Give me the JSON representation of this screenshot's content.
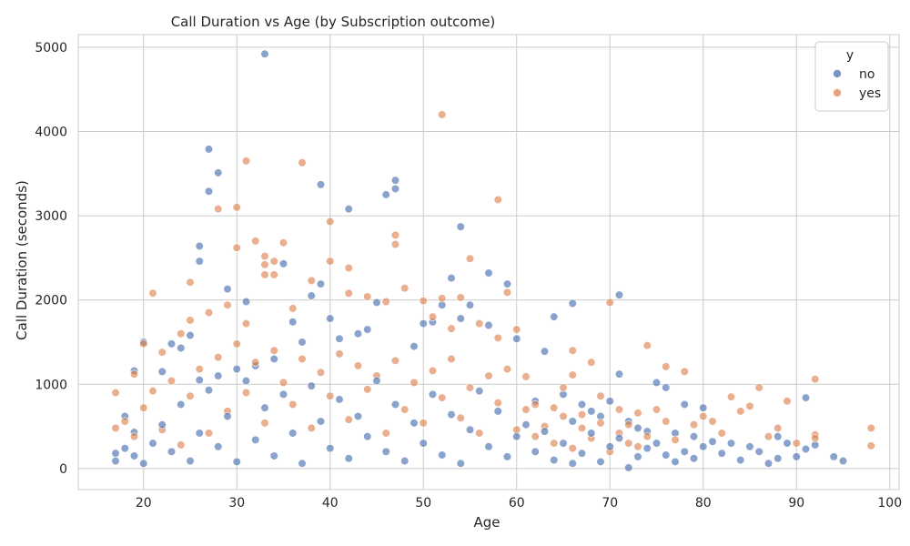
{
  "chart_data": {
    "type": "scatter",
    "title": "Call Duration vs Age (by Subscription outcome)",
    "xlabel": "Age",
    "ylabel": "Call Duration (seconds)",
    "xlim": [
      13,
      101
    ],
    "ylim": [
      -250,
      5150
    ],
    "xticks": [
      20,
      30,
      40,
      50,
      60,
      70,
      80,
      90,
      100
    ],
    "yticks": [
      0,
      1000,
      2000,
      3000,
      4000,
      5000
    ],
    "grid": true,
    "legend": {
      "title": "y",
      "placement": "top-right"
    },
    "series": [
      {
        "name": "no",
        "color": "#4c72b0",
        "points": [
          [
            33,
            4920
          ],
          [
            27,
            3790
          ],
          [
            28,
            3510
          ],
          [
            27,
            3290
          ],
          [
            39,
            3370
          ],
          [
            42,
            3080
          ],
          [
            47,
            3420
          ],
          [
            47,
            3320
          ],
          [
            46,
            3250
          ],
          [
            54,
            2870
          ],
          [
            26,
            2640
          ],
          [
            26,
            2460
          ],
          [
            35,
            2430
          ],
          [
            57,
            2320
          ],
          [
            53,
            2260
          ],
          [
            59,
            2190
          ],
          [
            39,
            2190
          ],
          [
            71,
            2060
          ],
          [
            29,
            2130
          ],
          [
            38,
            2050
          ],
          [
            31,
            1980
          ],
          [
            40,
            1780
          ],
          [
            36,
            1740
          ],
          [
            45,
            1970
          ],
          [
            52,
            1940
          ],
          [
            55,
            1940
          ],
          [
            66,
            1960
          ],
          [
            64,
            1800
          ],
          [
            63,
            1390
          ],
          [
            71,
            1120
          ],
          [
            75,
            1020
          ],
          [
            76,
            960
          ],
          [
            78,
            760
          ],
          [
            80,
            720
          ],
          [
            91,
            840
          ],
          [
            92,
            280
          ],
          [
            94,
            140
          ],
          [
            95,
            90
          ],
          [
            91,
            230
          ],
          [
            20,
            1500
          ],
          [
            19,
            1160
          ],
          [
            22,
            1150
          ],
          [
            23,
            1480
          ],
          [
            24,
            1430
          ],
          [
            25,
            1580
          ],
          [
            50,
            1720
          ],
          [
            51,
            1740
          ],
          [
            54,
            1780
          ],
          [
            57,
            1700
          ],
          [
            60,
            1540
          ],
          [
            49,
            1450
          ],
          [
            44,
            1650
          ],
          [
            43,
            1600
          ],
          [
            41,
            1540
          ],
          [
            37,
            1500
          ],
          [
            34,
            1300
          ],
          [
            32,
            1220
          ],
          [
            30,
            1180
          ],
          [
            28,
            1100
          ],
          [
            26,
            1050
          ],
          [
            62,
            800
          ],
          [
            65,
            880
          ],
          [
            67,
            760
          ],
          [
            68,
            680
          ],
          [
            69,
            620
          ],
          [
            70,
            800
          ],
          [
            72,
            560
          ],
          [
            73,
            480
          ],
          [
            74,
            440
          ],
          [
            77,
            420
          ],
          [
            79,
            380
          ],
          [
            81,
            320
          ],
          [
            83,
            300
          ],
          [
            85,
            260
          ],
          [
            86,
            200
          ],
          [
            88,
            380
          ],
          [
            88,
            120
          ],
          [
            89,
            300
          ],
          [
            72,
            10
          ],
          [
            66,
            60
          ],
          [
            17,
            180
          ],
          [
            17,
            90
          ],
          [
            18,
            620
          ],
          [
            18,
            240
          ],
          [
            19,
            430
          ],
          [
            19,
            150
          ],
          [
            20,
            60
          ],
          [
            21,
            300
          ],
          [
            22,
            520
          ],
          [
            23,
            200
          ],
          [
            24,
            760
          ],
          [
            25,
            90
          ],
          [
            26,
            420
          ],
          [
            27,
            930
          ],
          [
            28,
            260
          ],
          [
            29,
            620
          ],
          [
            30,
            80
          ],
          [
            31,
            1040
          ],
          [
            32,
            340
          ],
          [
            33,
            720
          ],
          [
            34,
            150
          ],
          [
            35,
            880
          ],
          [
            36,
            420
          ],
          [
            37,
            60
          ],
          [
            38,
            980
          ],
          [
            39,
            560
          ],
          [
            40,
            240
          ],
          [
            41,
            820
          ],
          [
            42,
            120
          ],
          [
            43,
            620
          ],
          [
            44,
            380
          ],
          [
            45,
            1040
          ],
          [
            46,
            200
          ],
          [
            47,
            760
          ],
          [
            48,
            90
          ],
          [
            49,
            540
          ],
          [
            50,
            300
          ],
          [
            51,
            880
          ],
          [
            52,
            160
          ],
          [
            53,
            640
          ],
          [
            54,
            60
          ],
          [
            55,
            460
          ],
          [
            56,
            920
          ],
          [
            57,
            260
          ],
          [
            58,
            680
          ],
          [
            59,
            140
          ],
          [
            60,
            380
          ],
          [
            61,
            520
          ],
          [
            62,
            200
          ],
          [
            63,
            440
          ],
          [
            64,
            100
          ],
          [
            65,
            300
          ],
          [
            66,
            560
          ],
          [
            67,
            180
          ],
          [
            68,
            420
          ],
          [
            69,
            80
          ],
          [
            70,
            260
          ],
          [
            71,
            360
          ],
          [
            73,
            140
          ],
          [
            74,
            240
          ],
          [
            75,
            300
          ],
          [
            76,
            160
          ],
          [
            77,
            80
          ],
          [
            78,
            200
          ],
          [
            79,
            120
          ],
          [
            80,
            260
          ],
          [
            82,
            180
          ],
          [
            84,
            100
          ],
          [
            87,
            60
          ],
          [
            90,
            140
          ]
        ]
      },
      {
        "name": "yes",
        "color": "#dd8452",
        "points": [
          [
            52,
            4200
          ],
          [
            31,
            3650
          ],
          [
            37,
            3630
          ],
          [
            58,
            3190
          ],
          [
            28,
            3080
          ],
          [
            30,
            3100
          ],
          [
            40,
            2930
          ],
          [
            47,
            2770
          ],
          [
            47,
            2660
          ],
          [
            33,
            2520
          ],
          [
            32,
            2700
          ],
          [
            35,
            2680
          ],
          [
            30,
            2620
          ],
          [
            33,
            2420
          ],
          [
            34,
            2460
          ],
          [
            40,
            2460
          ],
          [
            55,
            2490
          ],
          [
            42,
            2380
          ],
          [
            33,
            2300
          ],
          [
            34,
            2300
          ],
          [
            38,
            2230
          ],
          [
            25,
            2210
          ],
          [
            21,
            2080
          ],
          [
            42,
            2080
          ],
          [
            52,
            2020
          ],
          [
            54,
            2030
          ],
          [
            70,
            1970
          ],
          [
            59,
            2090
          ],
          [
            60,
            1650
          ],
          [
            66,
            1400
          ],
          [
            74,
            1460
          ],
          [
            76,
            1210
          ],
          [
            78,
            1150
          ],
          [
            68,
            1260
          ],
          [
            92,
            1060
          ],
          [
            86,
            960
          ],
          [
            89,
            800
          ],
          [
            83,
            850
          ],
          [
            98,
            480
          ],
          [
            98,
            270
          ],
          [
            92,
            400
          ],
          [
            17,
            900
          ],
          [
            20,
            1480
          ],
          [
            19,
            1120
          ],
          [
            22,
            1380
          ],
          [
            24,
            1600
          ],
          [
            25,
            1760
          ],
          [
            27,
            1850
          ],
          [
            29,
            1940
          ],
          [
            31,
            1720
          ],
          [
            36,
            1900
          ],
          [
            44,
            2040
          ],
          [
            46,
            1980
          ],
          [
            48,
            2140
          ],
          [
            50,
            1990
          ],
          [
            51,
            1800
          ],
          [
            53,
            1660
          ],
          [
            56,
            1720
          ],
          [
            58,
            1550
          ],
          [
            61,
            1090
          ],
          [
            62,
            760
          ],
          [
            64,
            720
          ],
          [
            65,
            960
          ],
          [
            66,
            1110
          ],
          [
            67,
            640
          ],
          [
            69,
            860
          ],
          [
            71,
            700
          ],
          [
            72,
            520
          ],
          [
            73,
            660
          ],
          [
            75,
            700
          ],
          [
            76,
            560
          ],
          [
            77,
            340
          ],
          [
            79,
            520
          ],
          [
            80,
            620
          ],
          [
            81,
            560
          ],
          [
            82,
            420
          ],
          [
            84,
            680
          ],
          [
            85,
            740
          ],
          [
            87,
            380
          ],
          [
            88,
            480
          ],
          [
            90,
            300
          ],
          [
            92,
            360
          ],
          [
            17,
            480
          ],
          [
            18,
            560
          ],
          [
            19,
            380
          ],
          [
            20,
            720
          ],
          [
            21,
            920
          ],
          [
            22,
            460
          ],
          [
            23,
            1040
          ],
          [
            24,
            280
          ],
          [
            25,
            860
          ],
          [
            26,
            1180
          ],
          [
            27,
            420
          ],
          [
            28,
            1320
          ],
          [
            29,
            680
          ],
          [
            30,
            1480
          ],
          [
            31,
            900
          ],
          [
            32,
            1260
          ],
          [
            33,
            540
          ],
          [
            34,
            1400
          ],
          [
            35,
            1020
          ],
          [
            36,
            760
          ],
          [
            37,
            1300
          ],
          [
            38,
            480
          ],
          [
            39,
            1140
          ],
          [
            40,
            860
          ],
          [
            41,
            1360
          ],
          [
            42,
            580
          ],
          [
            43,
            1220
          ],
          [
            44,
            940
          ],
          [
            45,
            1100
          ],
          [
            46,
            420
          ],
          [
            47,
            1280
          ],
          [
            48,
            700
          ],
          [
            49,
            1020
          ],
          [
            50,
            540
          ],
          [
            51,
            1160
          ],
          [
            52,
            840
          ],
          [
            53,
            1300
          ],
          [
            54,
            600
          ],
          [
            55,
            960
          ],
          [
            56,
            420
          ],
          [
            57,
            1100
          ],
          [
            58,
            780
          ],
          [
            59,
            1180
          ],
          [
            60,
            460
          ],
          [
            61,
            700
          ],
          [
            62,
            380
          ],
          [
            63,
            500
          ],
          [
            64,
            300
          ],
          [
            65,
            620
          ],
          [
            66,
            240
          ],
          [
            67,
            480
          ],
          [
            68,
            360
          ],
          [
            69,
            540
          ],
          [
            70,
            200
          ],
          [
            71,
            420
          ],
          [
            72,
            300
          ],
          [
            73,
            260
          ],
          [
            74,
            380
          ]
        ]
      }
    ]
  }
}
